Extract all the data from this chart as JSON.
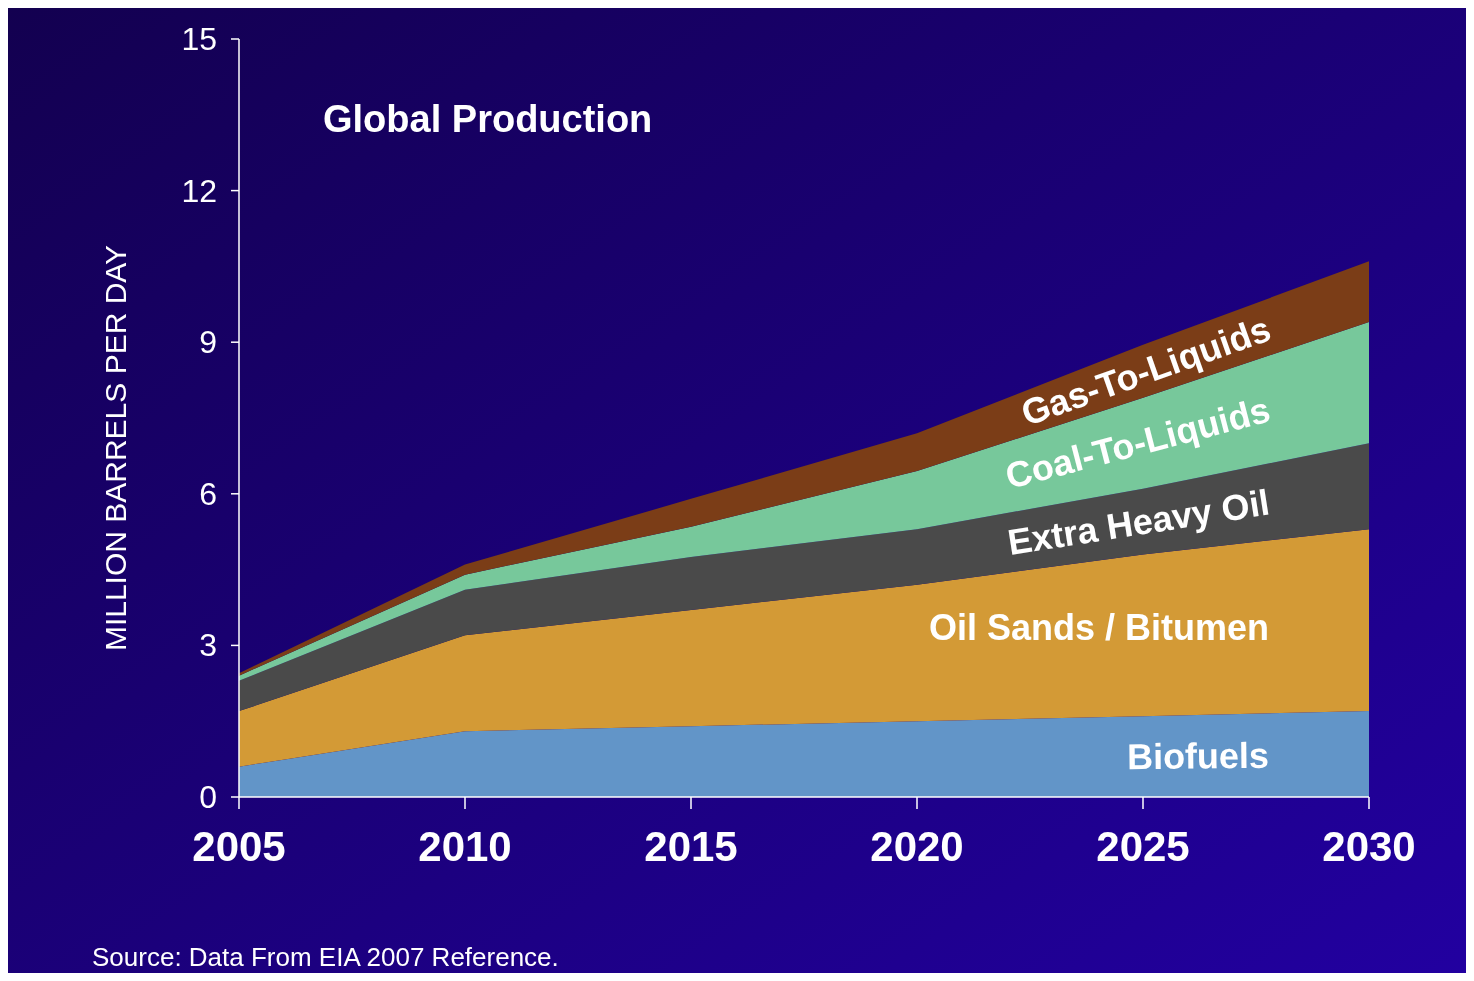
{
  "chart_data": {
    "type": "area",
    "stacked": true,
    "title": "Global Production",
    "ylabel": "MILLION BARRELS PER DAY",
    "x": [
      2005,
      2010,
      2015,
      2020,
      2025,
      2030
    ],
    "xlim": [
      2005,
      2030
    ],
    "xticks": [
      2005,
      2010,
      2015,
      2020,
      2025,
      2030
    ],
    "ylim": [
      0,
      15
    ],
    "yticks": [
      0,
      3,
      6,
      9,
      12,
      15
    ],
    "grid": false,
    "series": [
      {
        "name": "Biofuels",
        "color": "#6295c8",
        "values": [
          0.6,
          1.3,
          1.4,
          1.5,
          1.6,
          1.7
        ]
      },
      {
        "name": "Oil Sands / Bitumen",
        "color": "#d39a36",
        "values": [
          1.1,
          1.9,
          2.3,
          2.7,
          3.2,
          3.6
        ]
      },
      {
        "name": "Extra Heavy Oil",
        "color": "#4a4a4a",
        "values": [
          0.6,
          0.9,
          1.05,
          1.1,
          1.3,
          1.7
        ]
      },
      {
        "name": "Coal-To-Liquids",
        "color": "#77c89b",
        "values": [
          0.1,
          0.3,
          0.6,
          1.15,
          1.8,
          2.4
        ]
      },
      {
        "name": "Gas-To-Liquids",
        "color": "#7b3d17",
        "values": [
          0.05,
          0.2,
          0.55,
          0.75,
          1.05,
          1.2
        ]
      }
    ],
    "annotations": [
      "Source: Data From EIA 2007 Reference."
    ]
  }
}
